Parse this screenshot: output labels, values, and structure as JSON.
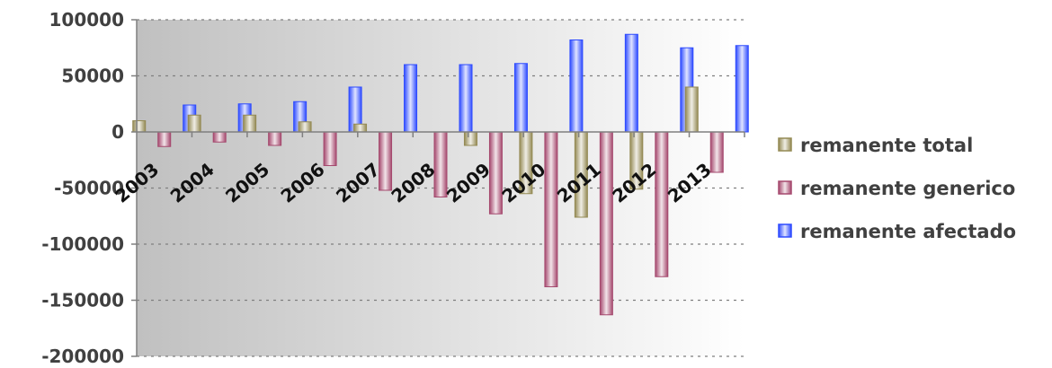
{
  "chart_data": {
    "type": "bar",
    "title": "",
    "xlabel": "",
    "ylabel": "",
    "categories": [
      "2003",
      "2004",
      "2005",
      "2006",
      "2007",
      "2008",
      "2009",
      "2010",
      "2011",
      "2012",
      "2013"
    ],
    "series": [
      {
        "name": "remanente total",
        "color": "#948A54",
        "values": [
          10000,
          15000,
          15000,
          9000,
          7000,
          0,
          -12000,
          -55000,
          -76000,
          -51000,
          40000
        ]
      },
      {
        "name": "remanente generico",
        "color": "#A5496E",
        "values": [
          -13000,
          -9000,
          -12000,
          -30000,
          -52000,
          -58000,
          -73000,
          -138000,
          -163000,
          -129000,
          -36000
        ]
      },
      {
        "name": "remanente afectado",
        "color": "#2E4BFF",
        "values": [
          24000,
          25000,
          27000,
          40000,
          60000,
          60000,
          61000,
          82000,
          87000,
          75000,
          77000
        ]
      }
    ],
    "ylim": [
      -200000,
      100000
    ],
    "yticks": [
      "100000",
      "50000",
      "0",
      "-50000",
      "-100000",
      "-150000",
      "-200000"
    ],
    "grid": true,
    "legend_position": "right",
    "background_gradient": [
      "#C0C0C0",
      "#FFFFFF"
    ]
  }
}
